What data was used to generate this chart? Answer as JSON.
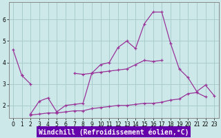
{
  "xlabel": "Windchill (Refroidissement éolien,°C)",
  "background_color": "#cce8e8",
  "grid_color": "#aacccc",
  "line_color": "#993399",
  "xlabel_bg": "#6600aa",
  "xlabel_fg": "#ffffff",
  "x_values": [
    0,
    1,
    2,
    3,
    4,
    5,
    6,
    7,
    8,
    9,
    10,
    11,
    12,
    13,
    14,
    15,
    16,
    17,
    18,
    19,
    20,
    21,
    22,
    23
  ],
  "line1": [
    4.6,
    3.4,
    null,
    null,
    null,
    null,
    null,
    null,
    null,
    null,
    null,
    null,
    null,
    null,
    null,
    null,
    null,
    null,
    null,
    null,
    null,
    null,
    null,
    null
  ],
  "line2": [
    null,
    3.4,
    3.0,
    null,
    null,
    null,
    null,
    3.5,
    3.45,
    3.5,
    3.55,
    3.6,
    3.65,
    3.7,
    3.9,
    4.1,
    4.05,
    4.1,
    null,
    null,
    null,
    null,
    null,
    null
  ],
  "line3": [
    null,
    null,
    1.6,
    2.2,
    2.35,
    1.7,
    2.0,
    2.05,
    2.1,
    3.5,
    3.9,
    4.0,
    4.7,
    5.0,
    4.65,
    5.8,
    6.35,
    6.35,
    4.9,
    3.7,
    3.3,
    2.65,
    2.95,
    2.45
  ],
  "line4": [
    null,
    null,
    1.55,
    1.6,
    1.65,
    1.65,
    1.7,
    1.75,
    1.75,
    1.85,
    1.9,
    1.95,
    2.0,
    2.0,
    2.05,
    2.1,
    2.1,
    2.15,
    2.25,
    2.3,
    2.55,
    2.6,
    2.4,
    null
  ],
  "xlim": [
    -0.5,
    23.5
  ],
  "ylim": [
    1.4,
    6.8
  ],
  "yticks": [
    2,
    3,
    4,
    5,
    6
  ],
  "xticks": [
    0,
    1,
    2,
    3,
    4,
    5,
    6,
    7,
    8,
    9,
    10,
    11,
    12,
    13,
    14,
    15,
    16,
    17,
    18,
    19,
    20,
    21,
    22,
    23
  ],
  "tick_fontsize": 5.5,
  "xlabel_fontsize": 7.0,
  "marker": "+",
  "lw": 0.9,
  "ms": 3.0
}
